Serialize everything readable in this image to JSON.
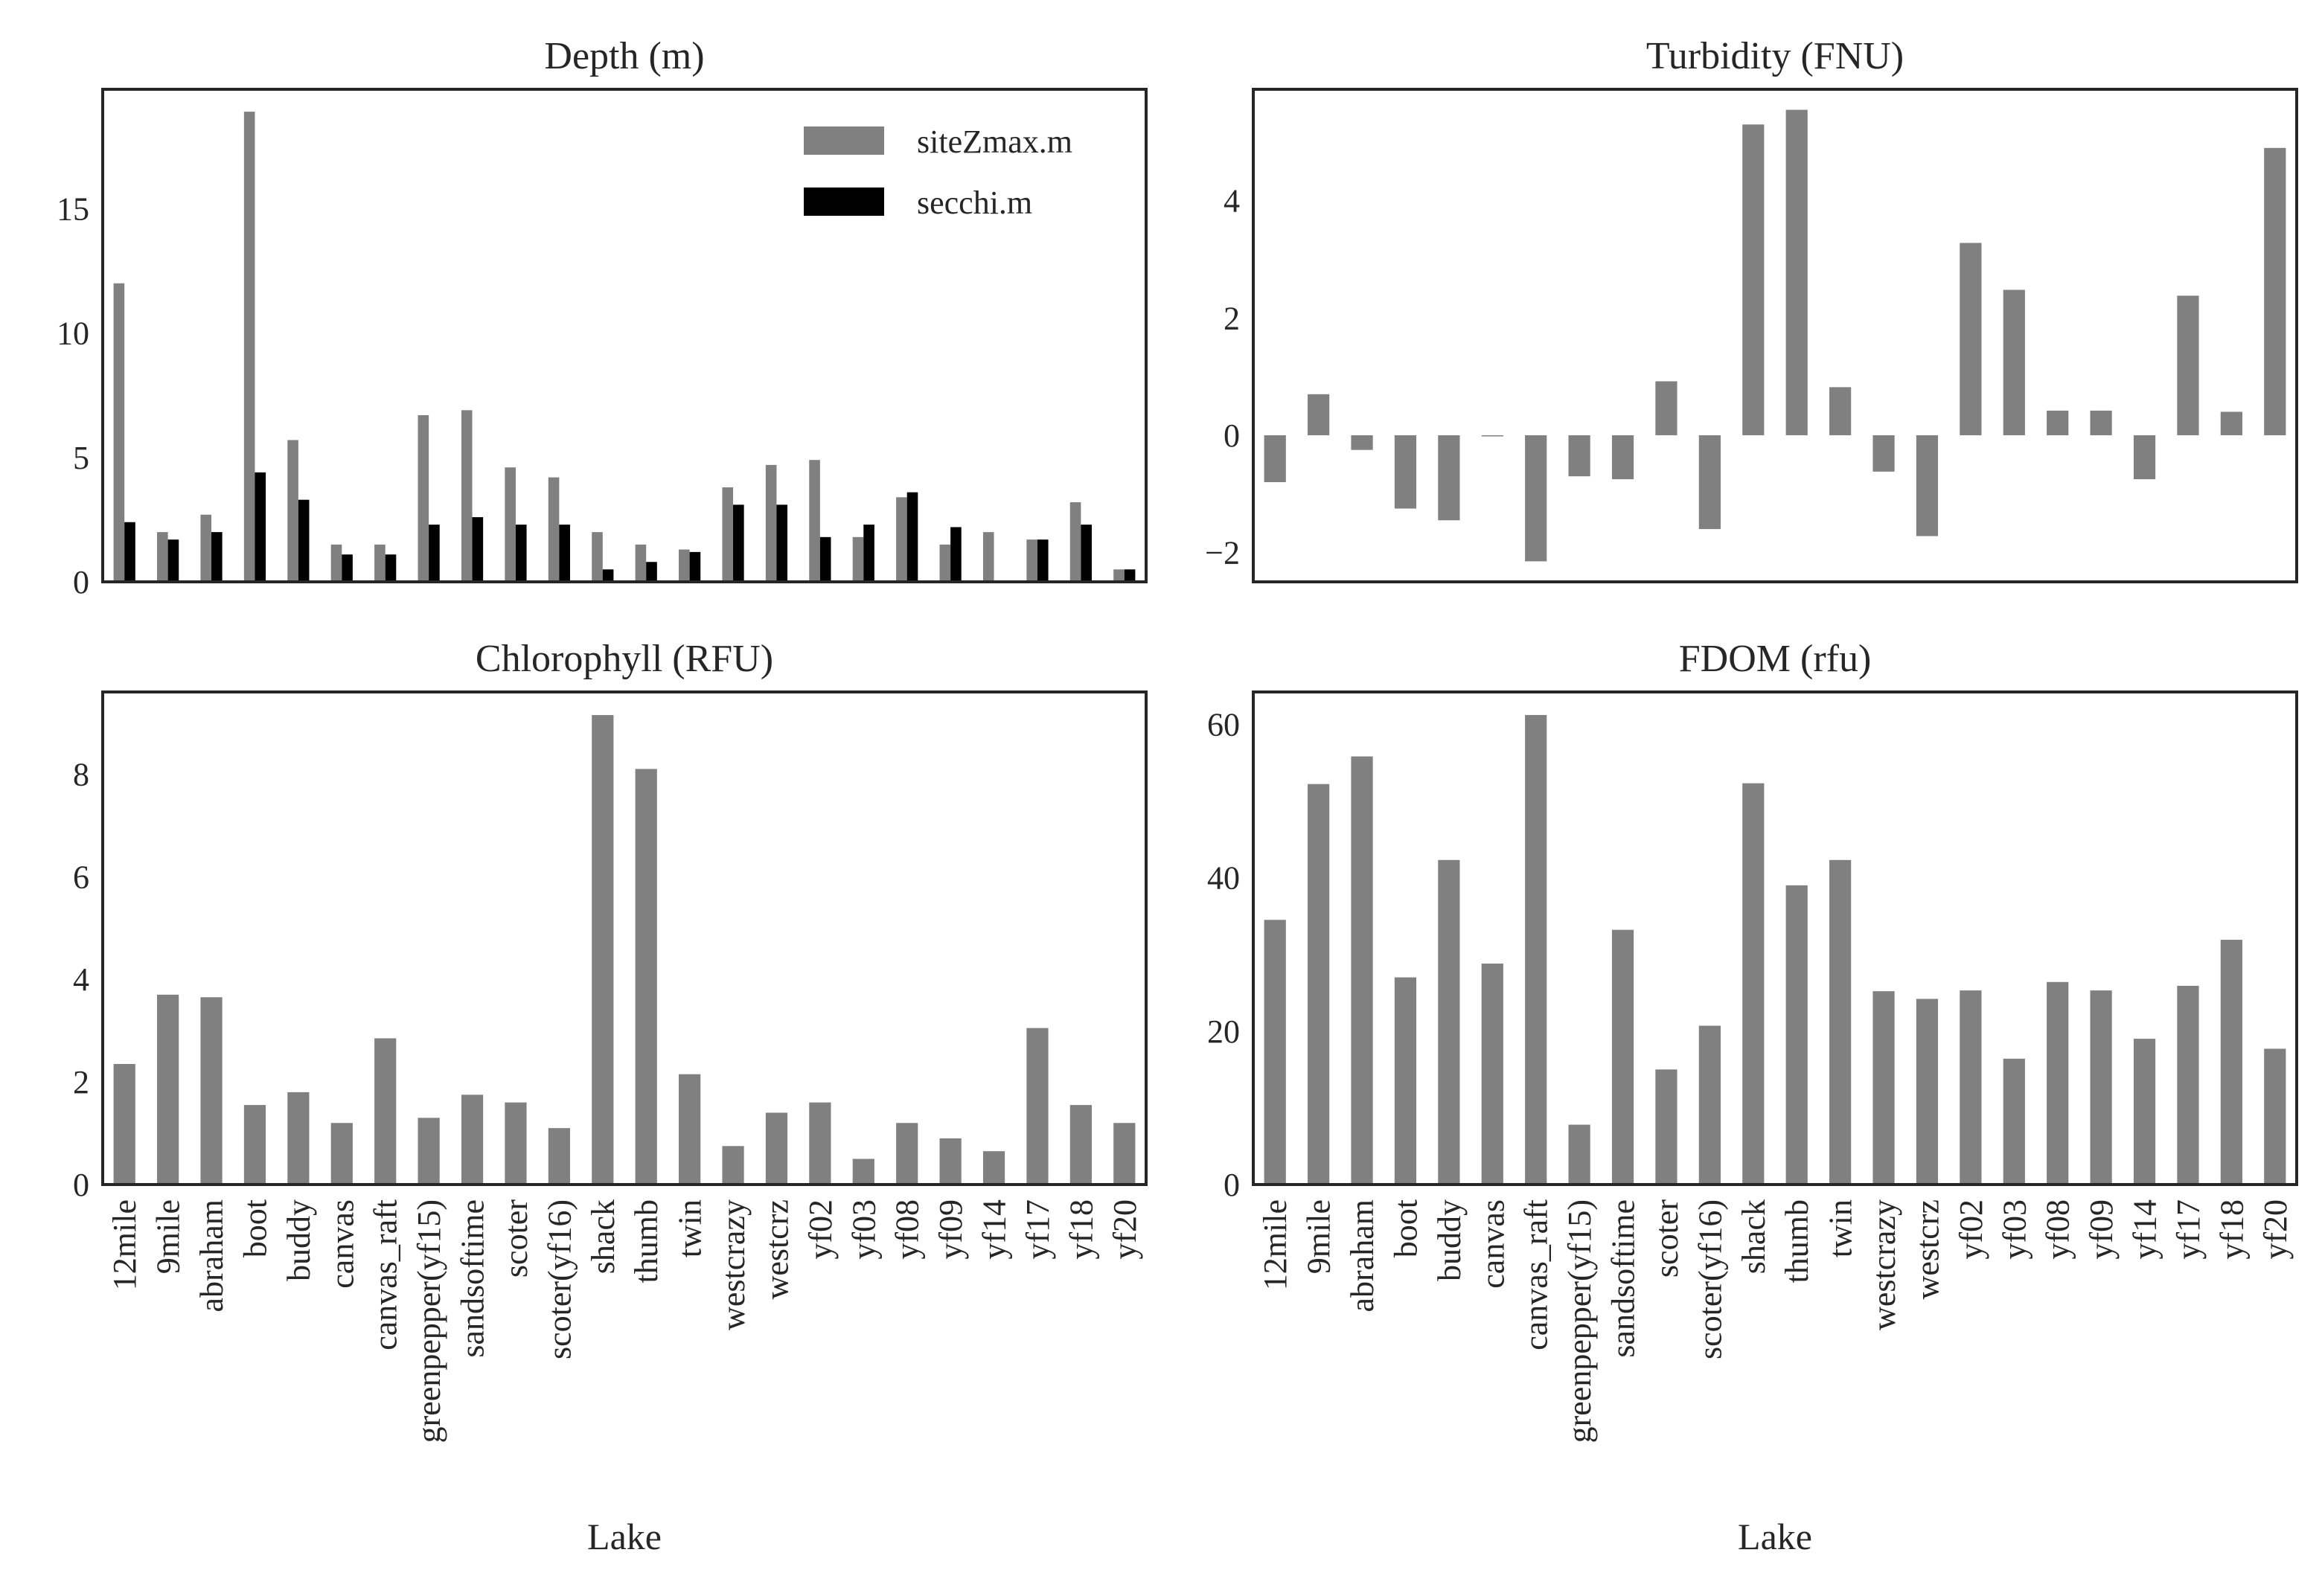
{
  "chart_data": [
    {
      "type": "bar",
      "title": "Depth (m)",
      "xlabel": "",
      "ylabel": "",
      "categories": [
        "12mile",
        "9mile",
        "abraham",
        "boot",
        "buddy",
        "canvas",
        "canvas_raft",
        "greenpepper(yf15)",
        "sandsoftime",
        "scoter",
        "scoter(yf16)",
        "shack",
        "thumb",
        "twin",
        "westcrazy",
        "westcrz",
        "yf02",
        "yf03",
        "yf08",
        "yf09",
        "yf14",
        "yf17",
        "yf18",
        "yf20"
      ],
      "ylim": [
        0,
        19.8
      ],
      "yticks": [
        0,
        5,
        10,
        15
      ],
      "legend": "top-right",
      "series": [
        {
          "name": "siteZmax.m",
          "color": "#808080",
          "values": [
            12.0,
            2.0,
            2.7,
            18.9,
            5.7,
            1.5,
            1.5,
            6.7,
            6.9,
            4.6,
            4.2,
            2.0,
            1.5,
            1.3,
            3.8,
            4.7,
            4.9,
            1.8,
            3.4,
            1.5,
            2.0,
            1.7,
            3.2,
            0.5
          ]
        },
        {
          "name": "secchi.m",
          "color": "#000000",
          "values": [
            2.4,
            1.7,
            2.0,
            4.4,
            3.3,
            1.1,
            1.1,
            2.3,
            2.6,
            2.3,
            2.3,
            0.5,
            0.8,
            1.2,
            3.1,
            3.1,
            1.8,
            2.3,
            3.6,
            2.2,
            0.0,
            1.7,
            2.3,
            0.5
          ]
        }
      ]
    },
    {
      "type": "bar",
      "title": "Turbidity (FNU)",
      "xlabel": "",
      "ylabel": "",
      "categories": [
        "12mile",
        "9mile",
        "abraham",
        "boot",
        "buddy",
        "canvas",
        "canvas_raft",
        "greenpepper(yf15)",
        "sandsoftime",
        "scoter",
        "scoter(yf16)",
        "shack",
        "thumb",
        "twin",
        "westcrazy",
        "westcrz",
        "yf02",
        "yf03",
        "yf08",
        "yf09",
        "yf14",
        "yf17",
        "yf18",
        "yf20"
      ],
      "ylim": [
        -2.5,
        5.9
      ],
      "yticks": [
        -2,
        0,
        2,
        4
      ],
      "series": [
        {
          "color": "#808080",
          "values": [
            -0.8,
            0.7,
            -0.25,
            -1.25,
            -1.45,
            0.0,
            -2.15,
            -0.7,
            -0.75,
            0.92,
            -1.6,
            5.3,
            5.55,
            0.82,
            -0.62,
            -1.72,
            3.28,
            2.48,
            0.42,
            0.42,
            -0.75,
            2.38,
            0.4,
            4.9
          ]
        }
      ]
    },
    {
      "type": "bar",
      "title": "Chlorophyll (RFU)",
      "xlabel": "Lake",
      "ylabel": "",
      "categories": [
        "12mile",
        "9mile",
        "abraham",
        "boot",
        "buddy",
        "canvas",
        "canvas_raft",
        "greenpepper(yf15)",
        "sandsoftime",
        "scoter",
        "scoter(yf16)",
        "shack",
        "thumb",
        "twin",
        "westcrazy",
        "westcrz",
        "yf02",
        "yf03",
        "yf08",
        "yf09",
        "yf14",
        "yf17",
        "yf18",
        "yf20"
      ],
      "ylim": [
        0,
        9.6
      ],
      "yticks": [
        0,
        2,
        4,
        6,
        8
      ],
      "series": [
        {
          "color": "#808080",
          "values": [
            2.35,
            3.7,
            3.65,
            1.55,
            1.8,
            1.2,
            2.85,
            1.3,
            1.75,
            1.6,
            1.1,
            9.15,
            8.1,
            2.15,
            0.75,
            1.4,
            1.6,
            0.5,
            1.2,
            0.9,
            0.65,
            3.05,
            1.55,
            1.2
          ]
        }
      ]
    },
    {
      "type": "bar",
      "title": "FDOM (rfu)",
      "xlabel": "Lake",
      "ylabel": "",
      "categories": [
        "12mile",
        "9mile",
        "abraham",
        "boot",
        "buddy",
        "canvas",
        "canvas_raft",
        "greenpepper(yf15)",
        "sandsoftime",
        "scoter",
        "scoter(yf16)",
        "shack",
        "thumb",
        "twin",
        "westcrazy",
        "westcrz",
        "yf02",
        "yf03",
        "yf08",
        "yf09",
        "yf14",
        "yf17",
        "yf18",
        "yf20"
      ],
      "ylim": [
        0,
        64.2
      ],
      "yticks": [
        0,
        20,
        40,
        60
      ],
      "series": [
        {
          "color": "#808080",
          "values": [
            34.5,
            52.2,
            55.8,
            27.0,
            42.3,
            28.8,
            61.2,
            7.8,
            33.2,
            15.0,
            20.7,
            52.3,
            39.0,
            42.3,
            25.2,
            24.2,
            25.3,
            16.4,
            26.4,
            25.3,
            19.0,
            25.9,
            31.9,
            17.7
          ]
        }
      ]
    }
  ]
}
